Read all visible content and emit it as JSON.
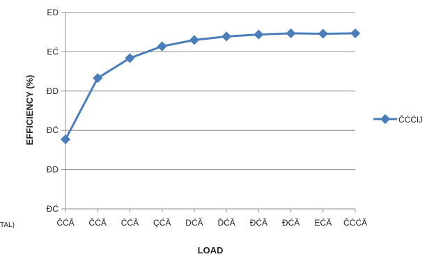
{
  "chart_data": {
    "type": "line",
    "xlabel": "LOAD",
    "ylabel": "EFFICIENCY (%)",
    "categories": [
      "ĈĆÃ",
      "ČĆÃ",
      "ĊĆÃ",
      "ÇĆÃ",
      "DĆÃ",
      "ĎĆÃ",
      "ĐĆÃ",
      "ĐĆÃ",
      "EĆÃ",
      "ĈĊĆÃ"
    ],
    "y_tick_labels": [
      "ĐĆ",
      "ĐD",
      "ĐĆ",
      "ĐD",
      "EĆ",
      "ED"
    ],
    "ylim": [
      0,
      5
    ],
    "grid": true,
    "legend_position": "right",
    "series": [
      {
        "name": "ČĊĆĲ",
        "color": "#4a7ebb",
        "values": [
          1.77,
          3.33,
          3.84,
          4.14,
          4.3,
          4.39,
          4.44,
          4.47,
          4.46,
          4.47
        ]
      }
    ]
  },
  "clipped_text": "TAL)"
}
